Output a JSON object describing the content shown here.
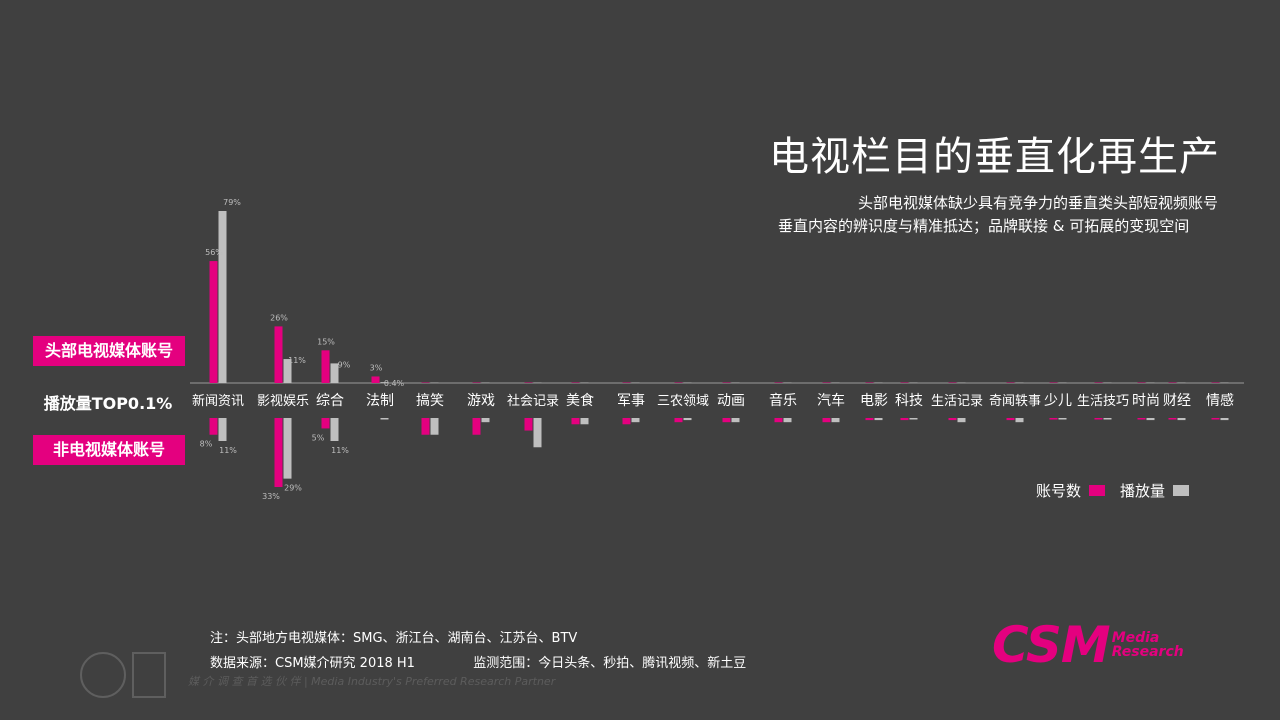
{
  "title": "电视栏目的垂直化再生产",
  "subtitle": {
    "line1": "头部电视媒体缺少具有竞争力的垂直类头部短视频账号",
    "line2": "垂直内容的辨识度与精准抵达；品牌联接 & 可拓展的变现空间"
  },
  "tags": {
    "top": "头部电视媒体账号",
    "bottom": "非电视媒体账号"
  },
  "top_label": "播放量TOP0.1%",
  "legend": {
    "accounts": "账号数",
    "plays": "播放量"
  },
  "colors": {
    "accounts": "#e4007f",
    "plays": "#bfbfbf",
    "axis": "#9a9a9a"
  },
  "notes": {
    "note": "注：头部地方电视媒体：SMG、浙江台、湖南台、江苏台、BTV",
    "source": "数据来源：CSM媒介研究 2018 H1",
    "scope": "监测范围：今日头条、秒拍、腾讯视频、新土豆"
  },
  "watermark": "媒 介 调 查 首 选 伙 伴 | Media Industry's Preferred Research Partner",
  "logo": {
    "brand": "CSM",
    "line1": "Media",
    "line2": "Research"
  },
  "chart_data": {
    "type": "bar",
    "categories": [
      "新闻资讯",
      "影视娱乐",
      "综合",
      "法制",
      "搞笑",
      "游戏",
      "社会记录",
      "美食",
      "军事",
      "三农领域",
      "动画",
      "音乐",
      "汽车",
      "电影",
      "科技",
      "生活记录",
      "奇闻轶事",
      "少儿",
      "生活技巧",
      "时尚",
      "财经",
      "情感"
    ],
    "series_top": [
      {
        "name": "账号数",
        "values": [
          56,
          26,
          15,
          3,
          0.2,
          0.2,
          0.2,
          0.2,
          0.2,
          0.2,
          0.2,
          0.2,
          0.2,
          0.2,
          0.2,
          0.2,
          0.2,
          0.2,
          0.2,
          0.2,
          0.2,
          0.2
        ]
      },
      {
        "name": "播放量",
        "values": [
          79,
          11,
          9,
          0.4,
          0.2,
          0.2,
          0.2,
          0.2,
          0.2,
          0.2,
          0.2,
          0.2,
          0.2,
          0.2,
          0.2,
          0.2,
          0.2,
          0.2,
          0.2,
          0.2,
          0.2,
          0.2
        ]
      }
    ],
    "series_bottom": [
      {
        "name": "账号数",
        "values": [
          8,
          33,
          5,
          0,
          8,
          8,
          6,
          3,
          3,
          2,
          2,
          2,
          2,
          1,
          1,
          1,
          1,
          0.5,
          0.5,
          0.5,
          0.5,
          0.5
        ]
      },
      {
        "name": "播放量",
        "values": [
          11,
          29,
          11,
          0.5,
          8,
          2,
          14,
          3,
          2,
          1,
          2,
          2,
          2,
          1,
          0.5,
          2,
          2,
          0.5,
          0.5,
          1,
          1,
          1
        ]
      }
    ],
    "labels_top": [
      [
        "56%",
        "79%"
      ],
      [
        "26%",
        "11%"
      ],
      [
        "15%",
        "9%"
      ],
      [
        "3%",
        "0.4%"
      ]
    ],
    "labels_bottom": [
      [
        "8%",
        "11%"
      ],
      [
        "33%",
        "29%"
      ],
      [
        "5%",
        "11%"
      ]
    ]
  }
}
